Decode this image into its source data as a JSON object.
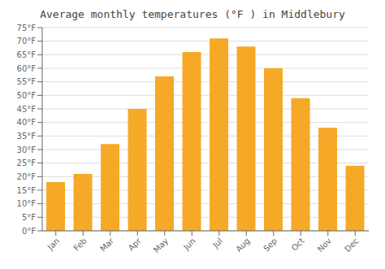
{
  "chart_data": {
    "type": "bar",
    "title": "Average monthly temperatures (°F ) in Middlebury",
    "categories": [
      "Jan",
      "Feb",
      "Mar",
      "Apr",
      "May",
      "Jun",
      "Jul",
      "Aug",
      "Sep",
      "Oct",
      "Nov",
      "Dec"
    ],
    "values": [
      18,
      21,
      32,
      45,
      57,
      66,
      71,
      68,
      60,
      49,
      38,
      24
    ],
    "color": "#F5A927",
    "ylim": [
      0,
      75
    ],
    "yticks": [
      {
        "value": 0,
        "label": "0°F"
      },
      {
        "value": 5,
        "label": "5°F"
      },
      {
        "value": 10,
        "label": "10°F"
      },
      {
        "value": 15,
        "label": "15°F"
      },
      {
        "value": 20,
        "label": "20°F"
      },
      {
        "value": 25,
        "label": "25°F"
      },
      {
        "value": 30,
        "label": "30°F"
      },
      {
        "value": 35,
        "label": "35°F"
      },
      {
        "value": 40,
        "label": "40°F"
      },
      {
        "value": 45,
        "label": "45°F"
      },
      {
        "value": 50,
        "label": "50°F"
      },
      {
        "value": 55,
        "label": "55°F"
      },
      {
        "value": 60,
        "label": "60°F"
      },
      {
        "value": 65,
        "label": "65°F"
      },
      {
        "value": 70,
        "label": "70°F"
      },
      {
        "value": 75,
        "label": "75°F"
      }
    ],
    "grid": true
  }
}
